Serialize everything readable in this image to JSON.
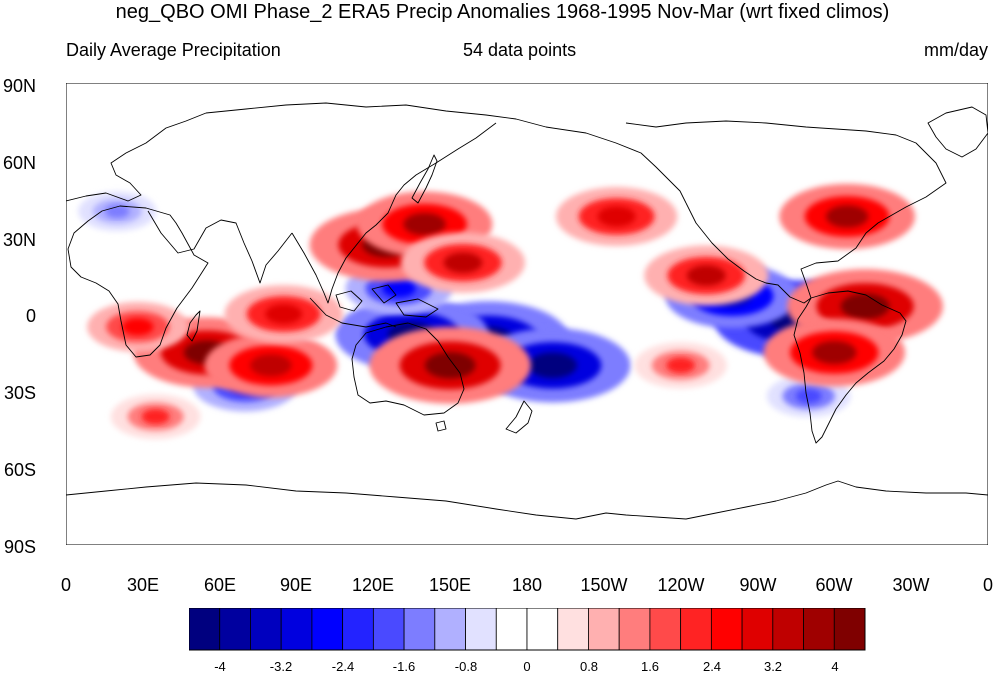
{
  "title": "neg_QBO OMI Phase_2 ERA5 Precip Anomalies 1968-1995 Nov-Mar (wrt fixed climos)",
  "left_subtitle": "Daily Average Precipitation",
  "center_subtitle": "54 data points",
  "right_subtitle": "mm/day",
  "lat_labels": [
    "90N",
    "60N",
    "30N",
    "0",
    "30S",
    "60S",
    "90S"
  ],
  "lon_labels": [
    "0",
    "30E",
    "60E",
    "90E",
    "120E",
    "150E",
    "180",
    "150W",
    "120W",
    "90W",
    "60W",
    "30W",
    "0"
  ],
  "colorbar": {
    "colors": [
      "#00007f",
      "#00009f",
      "#0000bf",
      "#0000df",
      "#0000ff",
      "#2323ff",
      "#4a4aff",
      "#7d7dff",
      "#b0b0ff",
      "#e1e1ff",
      "#ffffff",
      "#ffffff",
      "#ffe0e0",
      "#ffb0b0",
      "#ff7d7d",
      "#ff4a4a",
      "#ff2323",
      "#ff0000",
      "#df0000",
      "#bf0000",
      "#9f0000",
      "#7f0000"
    ],
    "labels": [
      "-4",
      "-3.2",
      "-2.4",
      "-1.6",
      "-0.8",
      "0",
      "0.8",
      "1.6",
      "2.4",
      "3.2",
      "4"
    ]
  },
  "map_data": {
    "variable": "precipitation anomaly",
    "units": "mm/day",
    "projection": "cylindrical equidistant",
    "lon_range": [
      0,
      360
    ],
    "lat_range": [
      -90,
      90
    ],
    "contour_levels": [
      -4,
      -3.6,
      -3.2,
      -2.8,
      -2.4,
      -2,
      -1.6,
      -1.2,
      -0.8,
      -0.4,
      0,
      0.4,
      0.8,
      1.2,
      1.6,
      2,
      2.4,
      2.8,
      3.2,
      3.6,
      4
    ],
    "anomalies": [
      {
        "lon": 165,
        "lat": -10,
        "value": -4.5
      },
      {
        "lon": 135,
        "lat": -8,
        "value": -4.2
      },
      {
        "lon": 190,
        "lat": -20,
        "value": -4.3
      },
      {
        "lon": 285,
        "lat": -2,
        "value": -4.6
      },
      {
        "lon": 260,
        "lat": 7,
        "value": -3.5
      },
      {
        "lon": 75,
        "lat": -15,
        "value": -2.5
      },
      {
        "lon": 70,
        "lat": -28,
        "value": -2.5
      },
      {
        "lon": 130,
        "lat": 10,
        "value": -2.6
      },
      {
        "lon": 290,
        "lat": -32,
        "value": -1.8
      },
      {
        "lon": 20,
        "lat": 40,
        "value": -1.6
      },
      {
        "lon": 125,
        "lat": 27,
        "value": 4.2
      },
      {
        "lon": 140,
        "lat": 35,
        "value": 3.6
      },
      {
        "lon": 155,
        "lat": 20,
        "value": 3.2
      },
      {
        "lon": 55,
        "lat": -15,
        "value": 4.0
      },
      {
        "lon": 80,
        "lat": -20,
        "value": 3.5
      },
      {
        "lon": 85,
        "lat": 0,
        "value": 3.0
      },
      {
        "lon": 312,
        "lat": 3,
        "value": 4.3
      },
      {
        "lon": 300,
        "lat": -15,
        "value": 3.8
      },
      {
        "lon": 250,
        "lat": 15,
        "value": 3.2
      },
      {
        "lon": 305,
        "lat": 38,
        "value": 3.6
      },
      {
        "lon": 215,
        "lat": 38,
        "value": 3.1
      },
      {
        "lon": 28,
        "lat": -5,
        "value": 2.4
      },
      {
        "lon": 150,
        "lat": -20,
        "value": 4.5
      },
      {
        "lon": 240,
        "lat": -20,
        "value": 2.1
      },
      {
        "lon": 35,
        "lat": -40,
        "value": 2.0
      }
    ]
  }
}
